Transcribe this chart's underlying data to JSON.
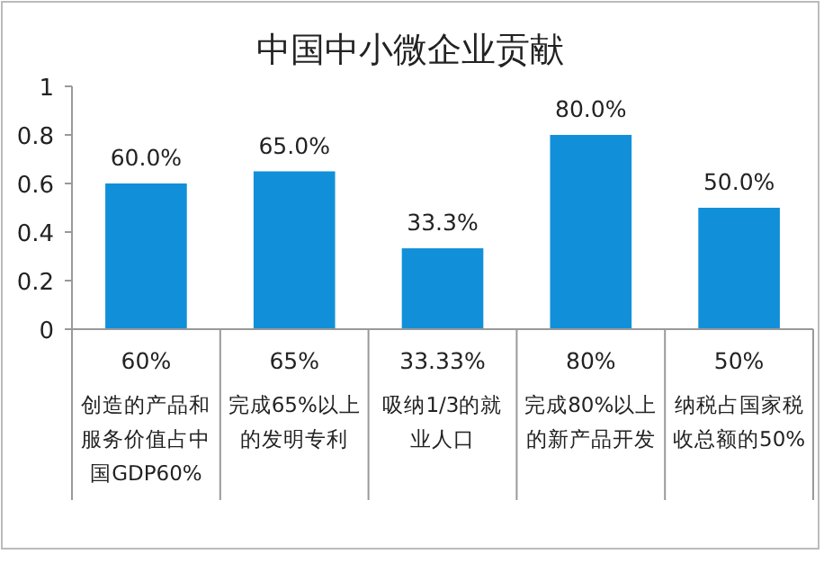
{
  "chart_data": {
    "type": "bar",
    "title": "中国中小微企业贡献",
    "categories": [
      "60%\n创造的产品和服务价值占中国GDP60%",
      "65%\n完成65%以上的发明专利",
      "33.33%\n吸纳1/3的就业人口",
      "80%\n完成80%以上的新产品开发",
      "50%\n纳税占国家税收总额的50%"
    ],
    "values": [
      0.6,
      0.65,
      0.333,
      0.8,
      0.5
    ],
    "value_labels": [
      "60.0%",
      "65.0%",
      "33.3%",
      "80.0%",
      "50.0%"
    ],
    "color": "#1190d9",
    "ylim": [
      0,
      1
    ],
    "yticks": [
      0,
      0.2,
      0.4,
      0.6,
      0.8,
      1
    ],
    "grid": false
  }
}
